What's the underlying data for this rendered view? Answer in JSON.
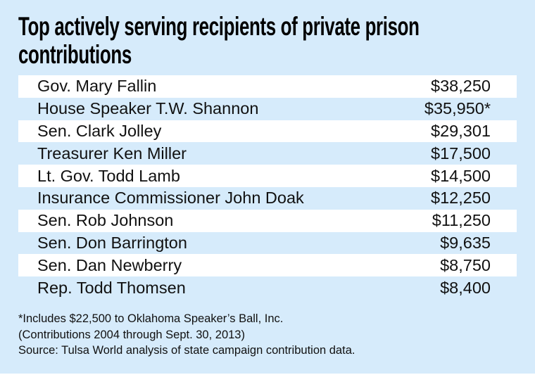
{
  "title": "Top actively serving recipients of private prison contributions",
  "chart_data": {
    "type": "table",
    "title": "Top actively serving recipients of private prison contributions",
    "rows": [
      {
        "name": "Gov. Mary Fallin",
        "amount": "$38,250"
      },
      {
        "name": "House Speaker T.W. Shannon",
        "amount": "$35,950*"
      },
      {
        "name": "Sen. Clark Jolley",
        "amount": "$29,301"
      },
      {
        "name": "Treasurer Ken Miller",
        "amount": "$17,500"
      },
      {
        "name": "Lt. Gov. Todd Lamb",
        "amount": "$14,500"
      },
      {
        "name": "Insurance Commissioner John Doak",
        "amount": "$12,250"
      },
      {
        "name": "Sen. Rob Johnson",
        "amount": "$11,250"
      },
      {
        "name": "Sen. Don Barrington",
        "amount": "$9,635"
      },
      {
        "name": "Sen. Dan Newberry",
        "amount": "$8,750"
      },
      {
        "name": "Rep. Todd Thomsen",
        "amount": "$8,400"
      }
    ]
  },
  "notes": [
    "*Includes $22,500 to Oklahoma Speaker’s Ball, Inc.",
    "(Contributions 2004 through Sept. 30, 2013)",
    "Source: Tulsa World analysis of state campaign contribution data."
  ],
  "colors": {
    "background": "#d6ebfb",
    "row_alt": "#ffffff"
  }
}
